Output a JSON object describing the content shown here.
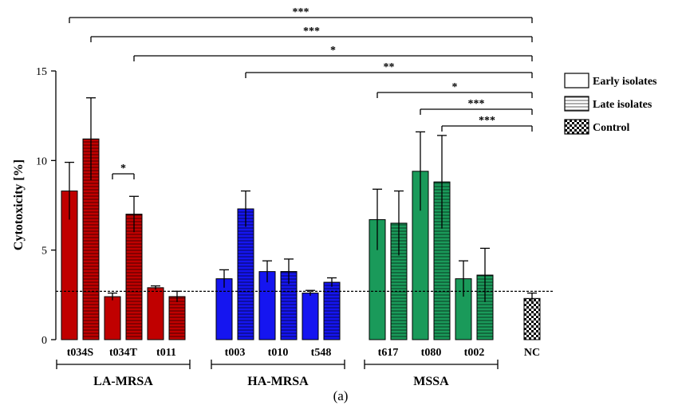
{
  "chart_data": {
    "type": "bar",
    "ylabel": "Cytotoxicity [%]",
    "ylim": [
      0,
      15
    ],
    "yticks": [
      0,
      5,
      10,
      15
    ],
    "subtitle": "(a)",
    "legend": {
      "placement": "right",
      "items": [
        {
          "label": "Early isolates",
          "pattern": "solid"
        },
        {
          "label": "Late isolates",
          "pattern": "striped"
        },
        {
          "label": "Control",
          "pattern": "checkered"
        }
      ]
    },
    "reference_line": {
      "value": 2.7,
      "style": "dotted"
    },
    "colors": {
      "LA-MRSA": "#c00000",
      "HA-MRSA": "#1515f0",
      "MSSA": "#1a9a5a",
      "Control": "#ffffff"
    },
    "groups": [
      {
        "name": "LA-MRSA",
        "ticks": [
          "t034S",
          "t034T",
          "t011"
        ],
        "first_bar": 0,
        "last_bar": 5
      },
      {
        "name": "HA-MRSA",
        "ticks": [
          "t003",
          "t010",
          "t548"
        ],
        "first_bar": 6,
        "last_bar": 11
      },
      {
        "name": "MSSA",
        "ticks": [
          "t617",
          "t080",
          "t002"
        ],
        "first_bar": 12,
        "last_bar": 17
      },
      {
        "name": "",
        "ticks": [
          "NC"
        ],
        "first_bar": 18,
        "last_bar": 18
      }
    ],
    "bars": [
      {
        "group": "LA-MRSA",
        "spa_type": "t034S",
        "isolate": "Early",
        "value": 8.3,
        "error": 1.6
      },
      {
        "group": "LA-MRSA",
        "spa_type": "t034S",
        "isolate": "Late",
        "value": 11.2,
        "error": 2.3
      },
      {
        "group": "LA-MRSA",
        "spa_type": "t034T",
        "isolate": "Early",
        "value": 2.4,
        "error": 0.2
      },
      {
        "group": "LA-MRSA",
        "spa_type": "t034T",
        "isolate": "Late",
        "value": 7.0,
        "error": 1.0
      },
      {
        "group": "LA-MRSA",
        "spa_type": "t011",
        "isolate": "Early",
        "value": 2.9,
        "error": 0.1
      },
      {
        "group": "LA-MRSA",
        "spa_type": "t011",
        "isolate": "Late",
        "value": 2.4,
        "error": 0.3
      },
      {
        "group": "HA-MRSA",
        "spa_type": "t003",
        "isolate": "Early",
        "value": 3.4,
        "error": 0.5
      },
      {
        "group": "HA-MRSA",
        "spa_type": "t003",
        "isolate": "Late",
        "value": 7.3,
        "error": 1.0
      },
      {
        "group": "HA-MRSA",
        "spa_type": "t010",
        "isolate": "Early",
        "value": 3.8,
        "error": 0.6
      },
      {
        "group": "HA-MRSA",
        "spa_type": "t010",
        "isolate": "Late",
        "value": 3.8,
        "error": 0.7
      },
      {
        "group": "HA-MRSA",
        "spa_type": "t548",
        "isolate": "Early",
        "value": 2.6,
        "error": 0.15
      },
      {
        "group": "HA-MRSA",
        "spa_type": "t548",
        "isolate": "Late",
        "value": 3.2,
        "error": 0.25
      },
      {
        "group": "MSSA",
        "spa_type": "t617",
        "isolate": "Early",
        "value": 6.7,
        "error": 1.7
      },
      {
        "group": "MSSA",
        "spa_type": "t617",
        "isolate": "Late",
        "value": 6.5,
        "error": 1.8
      },
      {
        "group": "MSSA",
        "spa_type": "t080",
        "isolate": "Early",
        "value": 9.4,
        "error": 2.2
      },
      {
        "group": "MSSA",
        "spa_type": "t080",
        "isolate": "Late",
        "value": 8.8,
        "error": 2.6
      },
      {
        "group": "MSSA",
        "spa_type": "t002",
        "isolate": "Early",
        "value": 3.4,
        "error": 1.0
      },
      {
        "group": "MSSA",
        "spa_type": "t002",
        "isolate": "Late",
        "value": 3.6,
        "error": 1.5
      },
      {
        "group": "Control",
        "spa_type": "NC",
        "isolate": "Control",
        "value": 2.3,
        "error": 0.3
      }
    ],
    "xtick_labels": [
      {
        "label": "t034S",
        "between_bars": [
          0,
          1
        ]
      },
      {
        "label": "t034T",
        "between_bars": [
          2,
          3
        ]
      },
      {
        "label": "t011",
        "between_bars": [
          4,
          5
        ]
      },
      {
        "label": "t003",
        "between_bars": [
          6,
          7
        ]
      },
      {
        "label": "t010",
        "between_bars": [
          8,
          9
        ]
      },
      {
        "label": "t548",
        "between_bars": [
          10,
          11
        ]
      },
      {
        "label": "t617",
        "between_bars": [
          12,
          13
        ]
      },
      {
        "label": "t080",
        "between_bars": [
          14,
          15
        ]
      },
      {
        "label": "t002",
        "between_bars": [
          16,
          17
        ]
      },
      {
        "label": "NC",
        "between_bars": [
          18,
          18
        ]
      }
    ],
    "significance": [
      {
        "from_bar": 0,
        "to_bar": 18,
        "label": "***"
      },
      {
        "from_bar": 1,
        "to_bar": 18,
        "label": "***"
      },
      {
        "from_bar": 3,
        "to_bar": 18,
        "label": "*"
      },
      {
        "from_bar": 7,
        "to_bar": 18,
        "label": "**"
      },
      {
        "from_bar": 12,
        "to_bar": 18,
        "label": "*"
      },
      {
        "from_bar": 14,
        "to_bar": 18,
        "label": "***"
      },
      {
        "from_bar": 15,
        "to_bar": 18,
        "label": "***"
      },
      {
        "from_bar": 2,
        "to_bar": 3,
        "label": "*",
        "short": true
      }
    ]
  }
}
